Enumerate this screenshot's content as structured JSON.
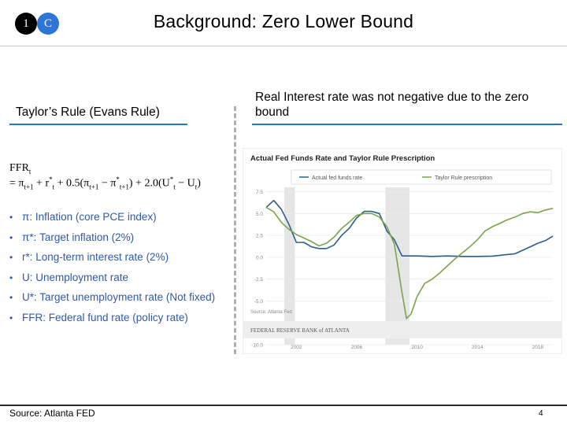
{
  "header": {
    "badge1": "1",
    "badge2": "C",
    "title": "Background: Zero Lower Bound"
  },
  "left": {
    "heading": "Taylor’s Rule (Evans Rule)",
    "formula_line1": "FFR",
    "formula_sub1": "t",
    "formula_line2": "= π",
    "bullets": [
      "π: Inflation (core PCE index)",
      "π*: Target inflation (2%)",
      "r*: Long-term interest rate (2%)",
      "U: Unemployment rate",
      "U*: Target unemployment rate (Not fixed)",
      "FFR: Federal fund rate (policy rate)"
    ],
    "source": "Source: Atlanta FED"
  },
  "right": {
    "heading": "Real Interest rate was not negative due to the zero bound"
  },
  "footer": {
    "page": "4"
  },
  "chart_data": {
    "type": "line",
    "title": "Actual Fed Funds Rate and Taylor Rule Prescription",
    "legend": [
      "Actual fed funds rate",
      "Taylor Rule prescription"
    ],
    "legend_position": "top",
    "y_ticks": [
      7.5,
      5.0,
      2.5,
      0.0,
      -2.5,
      -5.0,
      -7.5,
      -10.0
    ],
    "x_ticks": [
      "2002",
      "2006",
      "2010",
      "2014",
      "2018"
    ],
    "ylim": [
      -10,
      8
    ],
    "series": [
      {
        "name": "Actual fed funds rate",
        "color": "#2c5e8e",
        "x": [
          2000.0,
          2000.5,
          2001.0,
          2001.5,
          2002.0,
          2002.5,
          2003.0,
          2003.5,
          2004.0,
          2004.5,
          2005.0,
          2005.5,
          2006.0,
          2006.5,
          2007.0,
          2007.5,
          2008.0,
          2008.5,
          2009.0,
          2010,
          2011,
          2012,
          2013,
          2014,
          2015,
          2015.9,
          2016.5,
          2017.0,
          2017.5,
          2018.0,
          2018.5,
          2019.0
        ],
        "y": [
          5.7,
          6.5,
          5.5,
          3.8,
          1.7,
          1.7,
          1.2,
          1.0,
          1.0,
          1.4,
          2.5,
          3.3,
          4.5,
          5.25,
          5.25,
          5.0,
          3.0,
          2.0,
          0.15,
          0.15,
          0.1,
          0.15,
          0.1,
          0.1,
          0.13,
          0.3,
          0.4,
          0.8,
          1.2,
          1.6,
          1.9,
          2.4
        ]
      },
      {
        "name": "Taylor Rule prescription",
        "color": "#7aa34a",
        "x": [
          2000.0,
          2000.5,
          2001.0,
          2001.5,
          2002.0,
          2002.5,
          2003.0,
          2003.5,
          2004.0,
          2004.5,
          2005.0,
          2005.5,
          2006.0,
          2006.5,
          2007.0,
          2007.5,
          2008.0,
          2008.5,
          2009.0,
          2009.3,
          2009.6,
          2010.0,
          2010.5,
          2011.0,
          2011.5,
          2012.0,
          2012.5,
          2013.0,
          2013.5,
          2014.0,
          2014.5,
          2015.0,
          2015.5,
          2016.0,
          2016.5,
          2017.0,
          2017.5,
          2018.0,
          2018.5,
          2019.0
        ],
        "y": [
          5.7,
          5.2,
          4.0,
          3.2,
          2.6,
          2.2,
          1.8,
          1.3,
          1.6,
          2.3,
          3.3,
          4.0,
          4.8,
          5.0,
          5.0,
          4.6,
          3.5,
          1.5,
          -4.0,
          -7.0,
          -6.5,
          -4.5,
          -3.0,
          -2.5,
          -1.8,
          -1.0,
          -0.2,
          0.5,
          1.2,
          2.0,
          3.0,
          3.5,
          3.9,
          4.3,
          4.6,
          5.0,
          5.2,
          5.1,
          5.4,
          5.6
        ]
      }
    ],
    "footer_text": "FEDERAL RESERVE BANK of ATLANTA",
    "source_note": "Source: Atlanta Fed"
  }
}
